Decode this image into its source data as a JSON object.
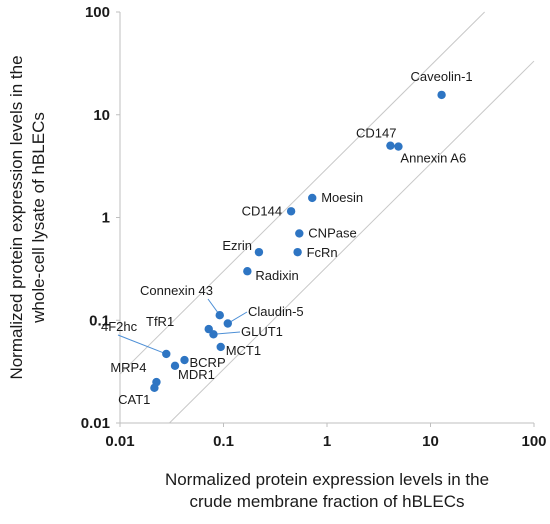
{
  "chart_data": {
    "type": "scatter",
    "title": "",
    "xlabel": [
      "Normalized protein expression levels in the",
      "crude membrane fraction of hBLECs"
    ],
    "ylabel": [
      "Normalized protein expression levels in the",
      "whole-cell lysate of hBLECs"
    ],
    "xscale": "log",
    "yscale": "log",
    "xlim": [
      0.01,
      100
    ],
    "ylim": [
      0.01,
      100
    ],
    "x_ticks": [
      "0.01",
      "0.1",
      "1",
      "10",
      "100"
    ],
    "y_ticks": [
      "0.01",
      "0.1",
      "1",
      "10",
      "100"
    ],
    "grid": false,
    "marker_color": "#2e75c3",
    "reference_lines": [
      {
        "description": "y = 3x",
        "factor": 3
      },
      {
        "description": "y = x/3",
        "factor": 0.333
      }
    ],
    "points": [
      {
        "label": "Caveolin-1",
        "x": 12.8,
        "y": 15.6
      },
      {
        "label": "CD147",
        "x": 4.1,
        "y": 5.0
      },
      {
        "label": "Annexin A6",
        "x": 4.9,
        "y": 4.9
      },
      {
        "label": "Moesin",
        "x": 0.72,
        "y": 1.55
      },
      {
        "label": "CD144",
        "x": 0.45,
        "y": 1.15
      },
      {
        "label": "CNPase",
        "x": 0.54,
        "y": 0.7
      },
      {
        "label": "FcRn",
        "x": 0.52,
        "y": 0.46
      },
      {
        "label": "Ezrin",
        "x": 0.22,
        "y": 0.46
      },
      {
        "label": "Radixin",
        "x": 0.17,
        "y": 0.3
      },
      {
        "label": "Connexin 43",
        "x": 0.092,
        "y": 0.112
      },
      {
        "label": "Claudin-5",
        "x": 0.11,
        "y": 0.093
      },
      {
        "label": "TfR1",
        "x": 0.072,
        "y": 0.082
      },
      {
        "label": "GLUT1",
        "x": 0.08,
        "y": 0.073
      },
      {
        "label": "MCT1",
        "x": 0.094,
        "y": 0.055
      },
      {
        "label": "4F2hc",
        "x": 0.028,
        "y": 0.047
      },
      {
        "label": "BCRP",
        "x": 0.042,
        "y": 0.041
      },
      {
        "label": "MDR1",
        "x": 0.034,
        "y": 0.036
      },
      {
        "label": "MRP4",
        "x": 0.0225,
        "y": 0.025
      },
      {
        "label": "CAT1",
        "x": 0.0215,
        "y": 0.022
      }
    ]
  }
}
